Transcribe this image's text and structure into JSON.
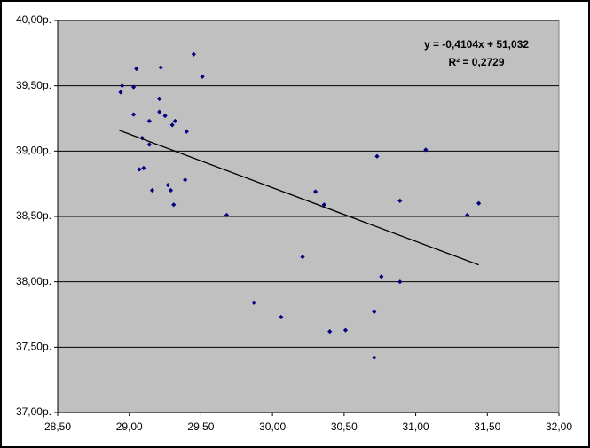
{
  "chart_data": {
    "type": "scatter",
    "color": "#000080",
    "grid": true,
    "xlim": [
      28.5,
      32
    ],
    "ylim": [
      37,
      40
    ],
    "xticks": [
      {
        "value": 28.5,
        "label": "28,50"
      },
      {
        "value": 29,
        "label": "29,00"
      },
      {
        "value": 29.5,
        "label": "29,50"
      },
      {
        "value": 30,
        "label": "30,00"
      },
      {
        "value": 30.5,
        "label": "30,50"
      },
      {
        "value": 31,
        "label": "31,00"
      },
      {
        "value": 31.5,
        "label": "31,50"
      },
      {
        "value": 32,
        "label": "32,00"
      }
    ],
    "yticks": [
      {
        "value": 37,
        "label": "37,00р."
      },
      {
        "value": 37.5,
        "label": "37,50р."
      },
      {
        "value": 38,
        "label": "38,00р."
      },
      {
        "value": 38.5,
        "label": "38,50р."
      },
      {
        "value": 39,
        "label": "39,00р."
      },
      {
        "value": 39.5,
        "label": "39,50р."
      },
      {
        "value": 40,
        "label": "40,00р."
      }
    ],
    "x": [
      28.94,
      28.95,
      29.05,
      29.03,
      29.03,
      29.22,
      29.45,
      29.51,
      29.21,
      29.21,
      29.25,
      29.14,
      29.32,
      29.3,
      29.4,
      29.09,
      29.14,
      29.07,
      29.1,
      29.39,
      29.16,
      29.27,
      29.29,
      29.31,
      29.68,
      29.87,
      30.06,
      30.21,
      30.3,
      30.36,
      30.4,
      30.51,
      30.73,
      30.71,
      30.76,
      30.71,
      30.89,
      30.89,
      31.07,
      31.36,
      31.44
    ],
    "values": [
      39.45,
      39.5,
      39.63,
      39.49,
      39.28,
      39.64,
      39.74,
      39.57,
      39.4,
      39.3,
      39.27,
      39.23,
      39.23,
      39.2,
      39.15,
      39.1,
      39.05,
      38.86,
      38.87,
      38.78,
      38.7,
      38.74,
      38.7,
      38.59,
      38.51,
      37.84,
      37.73,
      38.19,
      38.69,
      38.59,
      37.62,
      37.63,
      38.96,
      37.77,
      38.04,
      37.42,
      38.62,
      38.0,
      39.01,
      38.51,
      38.6
    ],
    "trendline": {
      "slope": -0.4104,
      "intercept": 51.032,
      "x": [
        28.93,
        31.44
      ],
      "color": "#000000"
    },
    "annotations": [
      "y = -0,4104x + 51,032",
      "R² = 0,2729"
    ]
  }
}
